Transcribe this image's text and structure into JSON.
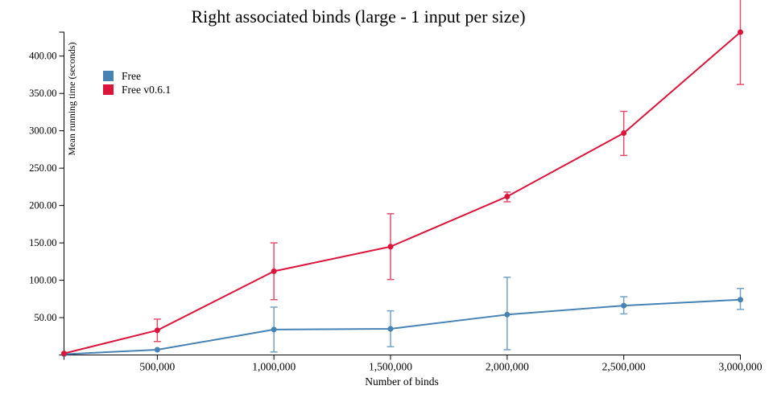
{
  "chart_data": {
    "type": "line",
    "title": "Right associated binds (large - 1 input per size)",
    "xlabel": "Number of binds",
    "ylabel": "Mean running time (seconds)",
    "xlim": [
      100000,
      3000000
    ],
    "ylim": [
      0,
      432
    ],
    "grid": false,
    "legend_position": "top-left",
    "axis_color": "#000000",
    "x": [
      100000,
      500000,
      1000000,
      1500000,
      2000000,
      2500000,
      3000000
    ],
    "x_ticks": [
      {
        "value": 500000,
        "label": "500,000"
      },
      {
        "value": 1000000,
        "label": "1,000,000"
      },
      {
        "value": 1500000,
        "label": "1,500,000"
      },
      {
        "value": 2000000,
        "label": "2,000,000"
      },
      {
        "value": 2500000,
        "label": "2,500,000"
      },
      {
        "value": 3000000,
        "label": "3,000,000"
      }
    ],
    "y_ticks": [
      {
        "value": 50,
        "label": "50.00"
      },
      {
        "value": 100,
        "label": "100.00"
      },
      {
        "value": 150,
        "label": "150.00"
      },
      {
        "value": 200,
        "label": "200.00"
      },
      {
        "value": 250,
        "label": "250.00"
      },
      {
        "value": 300,
        "label": "300.00"
      },
      {
        "value": 350,
        "label": "350.00"
      },
      {
        "value": 400,
        "label": "400.00"
      }
    ],
    "series": [
      {
        "name": "Free",
        "color": "#4682B4",
        "values": [
          1,
          7,
          34,
          35,
          54,
          66,
          74
        ],
        "err_low": [
          null,
          null,
          4,
          11,
          7,
          55,
          61
        ],
        "err_high": [
          null,
          null,
          64,
          59,
          104,
          78,
          89
        ]
      },
      {
        "name": "Free v0.6.1",
        "color": "#DC143C",
        "values": [
          2,
          33,
          112,
          145,
          212,
          297,
          432
        ],
        "err_low": [
          null,
          18,
          74,
          101,
          205,
          267,
          362
        ],
        "err_high": [
          null,
          48,
          150,
          189,
          218,
          326,
          502
        ]
      }
    ]
  }
}
